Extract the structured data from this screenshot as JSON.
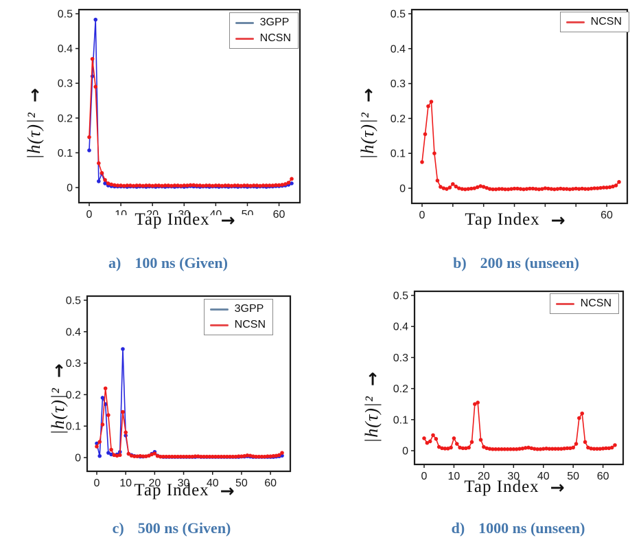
{
  "figure": {
    "xlabel": "Tap Index",
    "ylabel": "|h(τ)|²",
    "arrow_right": "→",
    "colors": {
      "line_3gpp": "#2727dd",
      "line_ncsn": "#ee1b1b",
      "legend_3gpp": "#6c88a6",
      "legend_ncsn": "#e84a4c",
      "caption": "#4678ad",
      "axis": "#1c1c1c"
    }
  },
  "chart_data": [
    {
      "id": "a",
      "type": "line",
      "caption_label": "a)",
      "caption_text": "100 ns (Given)",
      "xlabel": "Tap Index",
      "ylabel": "|h(τ)|²",
      "ylim": [
        0,
        0.5
      ],
      "yticks": [
        0,
        0.1,
        0.2,
        0.3,
        0.4,
        0.5
      ],
      "ytick_labels": [
        "0",
        "0.1",
        "0.2",
        "0.3",
        "0.4",
        "0.5"
      ],
      "xticks": [
        0,
        10,
        20,
        30,
        40,
        50,
        60
      ],
      "xtick_labels": [
        "0",
        "10",
        "20",
        "30",
        "40",
        "50",
        "60"
      ],
      "xtick_clipped": [
        10,
        20,
        30,
        40,
        50
      ],
      "legend": [
        {
          "label": "3GPP",
          "swatch": "#6c88a6"
        },
        {
          "label": "NCSN",
          "swatch": "#e84a4c"
        }
      ],
      "series": [
        {
          "name": "3GPP",
          "color": "#2727dd",
          "values": [
            0.107,
            0.32,
            0.483,
            0.018,
            0.04,
            0.012,
            0.006,
            0.004,
            0.003,
            0.003,
            0.003,
            0.003,
            0.002,
            0.003,
            0.003,
            0.002,
            0.003,
            0.003,
            0.002,
            0.003,
            0.003,
            0.002,
            0.003,
            0.003,
            0.002,
            0.003,
            0.003,
            0.002,
            0.003,
            0.003,
            0.002,
            0.003,
            0.004,
            0.003,
            0.003,
            0.002,
            0.003,
            0.003,
            0.002,
            0.003,
            0.003,
            0.002,
            0.003,
            0.003,
            0.002,
            0.003,
            0.003,
            0.002,
            0.003,
            0.003,
            0.002,
            0.003,
            0.003,
            0.002,
            0.003,
            0.003,
            0.002,
            0.003,
            0.003,
            0.004,
            0.004,
            0.005,
            0.006,
            0.008,
            0.012
          ]
        },
        {
          "name": "NCSN",
          "color": "#ee1b1b",
          "values": [
            0.145,
            0.37,
            0.29,
            0.07,
            0.042,
            0.022,
            0.012,
            0.009,
            0.007,
            0.006,
            0.006,
            0.005,
            0.006,
            0.006,
            0.005,
            0.006,
            0.006,
            0.005,
            0.006,
            0.006,
            0.005,
            0.006,
            0.006,
            0.005,
            0.006,
            0.006,
            0.005,
            0.006,
            0.006,
            0.005,
            0.006,
            0.006,
            0.007,
            0.007,
            0.006,
            0.006,
            0.005,
            0.006,
            0.006,
            0.005,
            0.006,
            0.006,
            0.005,
            0.006,
            0.006,
            0.005,
            0.006,
            0.006,
            0.005,
            0.006,
            0.006,
            0.005,
            0.006,
            0.006,
            0.005,
            0.006,
            0.006,
            0.006,
            0.006,
            0.007,
            0.007,
            0.008,
            0.01,
            0.014,
            0.025
          ]
        }
      ]
    },
    {
      "id": "b",
      "type": "line",
      "caption_label": "b)",
      "caption_text": "200 ns (unseen)",
      "xlabel": "Tap Index",
      "ylabel": "|h(τ)|²",
      "ylim": [
        0,
        0.5
      ],
      "yticks": [
        0,
        0.1,
        0.2,
        0.3,
        0.4,
        0.5
      ],
      "ytick_labels": [
        "0",
        "0.1",
        "0.2",
        "0.3",
        "0.4",
        "0.5"
      ],
      "xticks": [
        0,
        10,
        20,
        30,
        40,
        50,
        60
      ],
      "xtick_labels": [
        "0",
        "",
        "",
        "",
        "",
        "",
        "60"
      ],
      "xtick_clipped": [],
      "legend": [
        {
          "label": "NCSN",
          "swatch": "#e84a4c"
        }
      ],
      "series": [
        {
          "name": "NCSN",
          "color": "#ee1b1b",
          "values": [
            0.075,
            0.155,
            0.235,
            0.248,
            0.1,
            0.022,
            0.004,
            0.0,
            -0.002,
            0.002,
            0.012,
            0.005,
            0.0,
            -0.002,
            -0.003,
            -0.002,
            -0.001,
            0.0,
            0.003,
            0.006,
            0.004,
            0.001,
            -0.002,
            -0.003,
            -0.003,
            -0.002,
            -0.002,
            -0.003,
            -0.003,
            -0.002,
            -0.001,
            -0.001,
            -0.002,
            -0.003,
            -0.002,
            -0.001,
            -0.001,
            -0.002,
            -0.003,
            -0.002,
            0.0,
            -0.001,
            -0.002,
            -0.003,
            -0.002,
            -0.001,
            -0.002,
            -0.002,
            -0.003,
            -0.002,
            -0.001,
            -0.002,
            -0.001,
            -0.002,
            -0.002,
            -0.001,
            0.0,
            0.0,
            0.001,
            0.002,
            0.002,
            0.003,
            0.005,
            0.008,
            0.018
          ]
        }
      ]
    },
    {
      "id": "c",
      "type": "line",
      "caption_label": "c)",
      "caption_text": "500 ns (Given)",
      "xlabel": "Tap Index",
      "ylabel": "|h(τ)|²",
      "ylim": [
        0,
        0.5
      ],
      "yticks": [
        0,
        0.1,
        0.2,
        0.3,
        0.4,
        0.5
      ],
      "ytick_labels": [
        "0",
        "0.1",
        "0.2",
        "0.3",
        "0.4",
        "0.5"
      ],
      "xticks": [
        0,
        10,
        20,
        30,
        40,
        50,
        60
      ],
      "xtick_labels": [
        "0",
        "10",
        "20",
        "30",
        "40",
        "50",
        "60"
      ],
      "xtick_clipped": [],
      "legend": [
        {
          "label": "3GPP",
          "swatch": "#6c88a6"
        },
        {
          "label": "NCSN",
          "swatch": "#e84a4c"
        }
      ],
      "series": [
        {
          "name": "3GPP",
          "color": "#2727dd",
          "values": [
            0.045,
            0.005,
            0.19,
            0.17,
            0.015,
            0.01,
            0.008,
            0.01,
            0.018,
            0.345,
            0.07,
            0.012,
            0.008,
            0.005,
            0.004,
            0.003,
            0.003,
            0.004,
            0.006,
            0.012,
            0.018,
            0.006,
            0.003,
            0.002,
            0.002,
            0.002,
            0.002,
            0.002,
            0.002,
            0.002,
            0.002,
            0.002,
            0.002,
            0.002,
            0.002,
            0.003,
            0.002,
            0.002,
            0.002,
            0.002,
            0.002,
            0.002,
            0.002,
            0.002,
            0.002,
            0.002,
            0.002,
            0.002,
            0.002,
            0.002,
            0.003,
            0.003,
            0.004,
            0.003,
            0.002,
            0.002,
            0.002,
            0.002,
            0.002,
            0.002,
            0.002,
            0.002,
            0.003,
            0.004,
            0.006
          ]
        },
        {
          "name": "NCSN",
          "color": "#ee1b1b",
          "values": [
            0.035,
            0.05,
            0.105,
            0.22,
            0.135,
            0.025,
            0.008,
            0.006,
            0.008,
            0.145,
            0.08,
            0.012,
            0.006,
            0.004,
            0.004,
            0.005,
            0.004,
            0.004,
            0.006,
            0.01,
            0.013,
            0.005,
            0.003,
            0.003,
            0.003,
            0.003,
            0.003,
            0.003,
            0.003,
            0.003,
            0.003,
            0.003,
            0.003,
            0.003,
            0.004,
            0.004,
            0.003,
            0.003,
            0.003,
            0.003,
            0.003,
            0.003,
            0.003,
            0.003,
            0.003,
            0.003,
            0.003,
            0.003,
            0.003,
            0.004,
            0.004,
            0.005,
            0.007,
            0.006,
            0.004,
            0.003,
            0.003,
            0.003,
            0.003,
            0.004,
            0.004,
            0.005,
            0.006,
            0.008,
            0.015
          ]
        }
      ]
    },
    {
      "id": "d",
      "type": "line",
      "caption_label": "d)",
      "caption_text": "1000 ns (unseen)",
      "xlabel": "Tap Index",
      "ylabel": "|h(τ)|²",
      "ylim": [
        0,
        0.5
      ],
      "yticks": [
        0,
        0.1,
        0.2,
        0.3,
        0.4,
        0.5
      ],
      "ytick_labels": [
        "0",
        "0.1",
        "0.2",
        "0.3",
        "0.4",
        "0.5"
      ],
      "xticks": [
        0,
        10,
        20,
        30,
        40,
        50,
        60
      ],
      "xtick_labels": [
        "0",
        "10",
        "20",
        "30",
        "40",
        "50",
        "60"
      ],
      "xtick_clipped": [],
      "legend": [
        {
          "label": "NCSN",
          "swatch": "#e84a4c"
        }
      ],
      "series": [
        {
          "name": "NCSN",
          "color": "#ee1b1b",
          "values": [
            0.04,
            0.025,
            0.03,
            0.05,
            0.038,
            0.012,
            0.008,
            0.007,
            0.007,
            0.01,
            0.04,
            0.022,
            0.01,
            0.008,
            0.008,
            0.01,
            0.028,
            0.15,
            0.155,
            0.035,
            0.012,
            0.008,
            0.006,
            0.005,
            0.005,
            0.005,
            0.005,
            0.005,
            0.005,
            0.005,
            0.005,
            0.005,
            0.006,
            0.007,
            0.009,
            0.01,
            0.008,
            0.006,
            0.005,
            0.005,
            0.006,
            0.007,
            0.006,
            0.006,
            0.006,
            0.006,
            0.006,
            0.007,
            0.008,
            0.008,
            0.01,
            0.022,
            0.105,
            0.12,
            0.028,
            0.01,
            0.007,
            0.006,
            0.006,
            0.006,
            0.007,
            0.008,
            0.008,
            0.01,
            0.018
          ]
        }
      ]
    }
  ]
}
